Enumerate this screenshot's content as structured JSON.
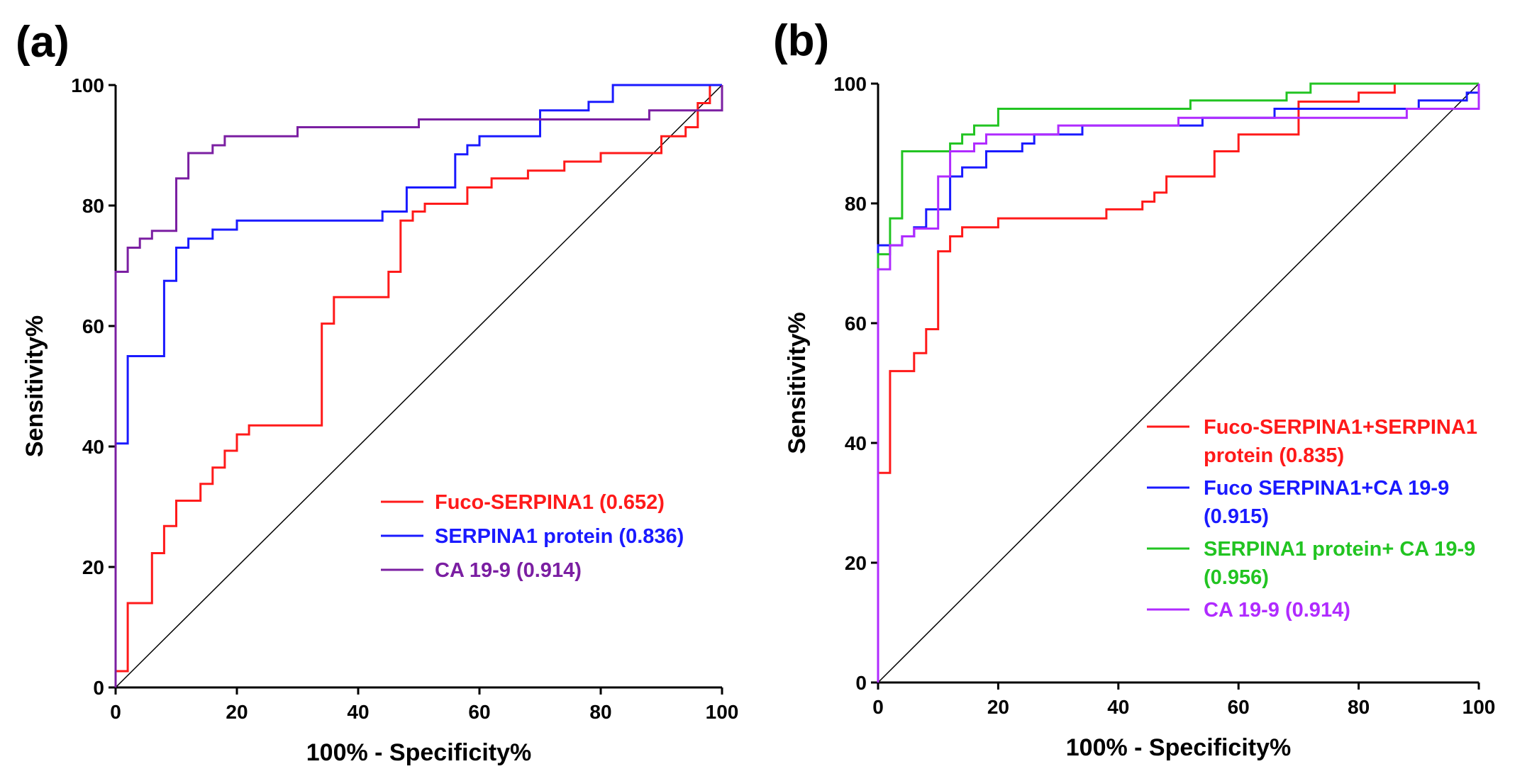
{
  "chart_data": [
    {
      "type": "line",
      "panel_label": "(a)",
      "xlabel": "100% - Specificity%",
      "ylabel": "Sensitivity%",
      "xlim": [
        0,
        100
      ],
      "ylim": [
        0,
        100
      ],
      "xticks": [
        "0",
        "20",
        "40",
        "60",
        "80",
        "100"
      ],
      "yticks": [
        "0",
        "20",
        "40",
        "60",
        "80",
        "100"
      ],
      "legend_position": "bottom-right",
      "series": [
        {
          "name": "Fuco-SERPINA1",
          "label_lines": [
            "Fuco-SERPINA1 (0.652)"
          ],
          "color": "#ff1a1a",
          "points": [
            [
              0,
              0
            ],
            [
              0,
              2.7
            ],
            [
              2,
              2.7
            ],
            [
              2,
              14
            ],
            [
              6,
              14
            ],
            [
              6,
              22.3
            ],
            [
              8,
              22.3
            ],
            [
              8,
              26.8
            ],
            [
              10,
              26.8
            ],
            [
              10,
              31
            ],
            [
              14,
              31
            ],
            [
              14,
              33.8
            ],
            [
              16,
              33.8
            ],
            [
              16,
              36.5
            ],
            [
              18,
              36.5
            ],
            [
              18,
              39.3
            ],
            [
              20,
              39.3
            ],
            [
              20,
              42
            ],
            [
              22,
              42
            ],
            [
              22,
              43.5
            ],
            [
              34,
              43.5
            ],
            [
              34,
              60.4
            ],
            [
              36,
              60.4
            ],
            [
              36,
              64.8
            ],
            [
              45,
              64.8
            ],
            [
              45,
              69
            ],
            [
              47,
              69
            ],
            [
              47,
              77.5
            ],
            [
              49,
              77.5
            ],
            [
              49,
              79
            ],
            [
              51,
              79
            ],
            [
              51,
              80.3
            ],
            [
              58,
              80.3
            ],
            [
              58,
              83
            ],
            [
              62,
              83
            ],
            [
              62,
              84.5
            ],
            [
              68,
              84.5
            ],
            [
              68,
              85.8
            ],
            [
              74,
              85.8
            ],
            [
              74,
              87.3
            ],
            [
              80,
              87.3
            ],
            [
              80,
              88.7
            ],
            [
              90,
              88.7
            ],
            [
              90,
              91.5
            ],
            [
              94,
              91.5
            ],
            [
              94,
              93
            ],
            [
              96,
              93
            ],
            [
              96,
              97
            ],
            [
              98,
              97
            ],
            [
              98,
              100
            ],
            [
              100,
              100
            ]
          ]
        },
        {
          "name": "SERPINA1 protein",
          "label_lines": [
            "SERPINA1 protein (0.836)"
          ],
          "color": "#1a1aff",
          "points": [
            [
              0,
              0
            ],
            [
              0,
              40.5
            ],
            [
              2,
              40.5
            ],
            [
              2,
              55
            ],
            [
              8,
              55
            ],
            [
              8,
              67.5
            ],
            [
              10,
              67.5
            ],
            [
              10,
              73
            ],
            [
              12,
              73
            ],
            [
              12,
              74.5
            ],
            [
              16,
              74.5
            ],
            [
              16,
              76
            ],
            [
              20,
              76
            ],
            [
              20,
              77.5
            ],
            [
              44,
              77.5
            ],
            [
              44,
              79
            ],
            [
              48,
              79
            ],
            [
              48,
              83
            ],
            [
              56,
              83
            ],
            [
              56,
              88.5
            ],
            [
              58,
              88.5
            ],
            [
              58,
              90
            ],
            [
              60,
              90
            ],
            [
              60,
              91.5
            ],
            [
              70,
              91.5
            ],
            [
              70,
              95.8
            ],
            [
              78,
              95.8
            ],
            [
              78,
              97.2
            ],
            [
              82,
              97.2
            ],
            [
              82,
              100
            ],
            [
              100,
              100
            ]
          ]
        },
        {
          "name": "CA 19-9",
          "label_lines": [
            "CA 19-9 (0.914)"
          ],
          "color": "#7b1fa2",
          "points": [
            [
              0,
              0
            ],
            [
              0,
              69
            ],
            [
              2,
              69
            ],
            [
              2,
              73
            ],
            [
              4,
              73
            ],
            [
              4,
              74.5
            ],
            [
              6,
              74.5
            ],
            [
              6,
              75.8
            ],
            [
              10,
              75.8
            ],
            [
              10,
              84.5
            ],
            [
              12,
              84.5
            ],
            [
              12,
              88.7
            ],
            [
              16,
              88.7
            ],
            [
              16,
              90
            ],
            [
              18,
              90
            ],
            [
              18,
              91.5
            ],
            [
              30,
              91.5
            ],
            [
              30,
              93
            ],
            [
              50,
              93
            ],
            [
              50,
              94.3
            ],
            [
              88,
              94.3
            ],
            [
              88,
              95.8
            ],
            [
              100,
              95.8
            ],
            [
              100,
              100
            ]
          ]
        }
      ]
    },
    {
      "type": "line",
      "panel_label": "(b)",
      "xlabel": "100% - Specificity%",
      "ylabel": "Sensitivity%",
      "xlim": [
        0,
        100
      ],
      "ylim": [
        0,
        100
      ],
      "xticks": [
        "0",
        "20",
        "40",
        "60",
        "80",
        "100"
      ],
      "yticks": [
        "0",
        "20",
        "40",
        "60",
        "80",
        "100"
      ],
      "legend_position": "bottom-right",
      "series": [
        {
          "name": "Fuco-SERPINA1+SERPINA1 protein",
          "label_lines": [
            "Fuco-SERPINA1+SERPINA1",
            "protein (0.835)"
          ],
          "color": "#ff1a1a",
          "points": [
            [
              0,
              0
            ],
            [
              0,
              35
            ],
            [
              2,
              35
            ],
            [
              2,
              52
            ],
            [
              6,
              52
            ],
            [
              6,
              55
            ],
            [
              8,
              55
            ],
            [
              8,
              59
            ],
            [
              10,
              59
            ],
            [
              10,
              72
            ],
            [
              12,
              72
            ],
            [
              12,
              74.5
            ],
            [
              14,
              74.5
            ],
            [
              14,
              76
            ],
            [
              20,
              76
            ],
            [
              20,
              77.5
            ],
            [
              38,
              77.5
            ],
            [
              38,
              79
            ],
            [
              44,
              79
            ],
            [
              44,
              80.3
            ],
            [
              46,
              80.3
            ],
            [
              46,
              81.8
            ],
            [
              48,
              81.8
            ],
            [
              48,
              84.5
            ],
            [
              56,
              84.5
            ],
            [
              56,
              88.7
            ],
            [
              60,
              88.7
            ],
            [
              60,
              91.5
            ],
            [
              70,
              91.5
            ],
            [
              70,
              97
            ],
            [
              80,
              97
            ],
            [
              80,
              98.5
            ],
            [
              86,
              98.5
            ],
            [
              86,
              100
            ],
            [
              100,
              100
            ]
          ]
        },
        {
          "name": "Fuco SERPINA1+CA 19-9",
          "label_lines": [
            "Fuco SERPINA1+CA 19-9",
            "(0.915)"
          ],
          "color": "#1a1aff",
          "points": [
            [
              0,
              0
            ],
            [
              0,
              73
            ],
            [
              4,
              73
            ],
            [
              4,
              74.5
            ],
            [
              6,
              74.5
            ],
            [
              6,
              76
            ],
            [
              8,
              76
            ],
            [
              8,
              79
            ],
            [
              12,
              79
            ],
            [
              12,
              84.5
            ],
            [
              14,
              84.5
            ],
            [
              14,
              86
            ],
            [
              18,
              86
            ],
            [
              18,
              88.7
            ],
            [
              24,
              88.7
            ],
            [
              24,
              90
            ],
            [
              26,
              90
            ],
            [
              26,
              91.5
            ],
            [
              34,
              91.5
            ],
            [
              34,
              93
            ],
            [
              54,
              93
            ],
            [
              54,
              94.3
            ],
            [
              66,
              94.3
            ],
            [
              66,
              95.8
            ],
            [
              90,
              95.8
            ],
            [
              90,
              97.2
            ],
            [
              98,
              97.2
            ],
            [
              98,
              98.5
            ],
            [
              100,
              98.5
            ],
            [
              100,
              100
            ]
          ]
        },
        {
          "name": "SERPINA1 protein+ CA 19-9",
          "label_lines": [
            "SERPINA1 protein+ CA 19-9",
            "(0.956)"
          ],
          "color": "#22c422",
          "points": [
            [
              0,
              0
            ],
            [
              0,
              71.5
            ],
            [
              2,
              71.5
            ],
            [
              2,
              77.5
            ],
            [
              4,
              77.5
            ],
            [
              4,
              88.7
            ],
            [
              12,
              88.7
            ],
            [
              12,
              90
            ],
            [
              14,
              90
            ],
            [
              14,
              91.5
            ],
            [
              16,
              91.5
            ],
            [
              16,
              93
            ],
            [
              20,
              93
            ],
            [
              20,
              95.8
            ],
            [
              52,
              95.8
            ],
            [
              52,
              97.2
            ],
            [
              68,
              97.2
            ],
            [
              68,
              98.5
            ],
            [
              72,
              98.5
            ],
            [
              72,
              100
            ],
            [
              100,
              100
            ]
          ]
        },
        {
          "name": "CA 19-9",
          "label_lines": [
            "CA 19-9 (0.914)"
          ],
          "color": "#b02bff",
          "points": [
            [
              0,
              0
            ],
            [
              0,
              69
            ],
            [
              2,
              69
            ],
            [
              2,
              73
            ],
            [
              4,
              73
            ],
            [
              4,
              74.5
            ],
            [
              6,
              74.5
            ],
            [
              6,
              75.8
            ],
            [
              10,
              75.8
            ],
            [
              10,
              84.5
            ],
            [
              12,
              84.5
            ],
            [
              12,
              88.7
            ],
            [
              16,
              88.7
            ],
            [
              16,
              90
            ],
            [
              18,
              90
            ],
            [
              18,
              91.5
            ],
            [
              30,
              91.5
            ],
            [
              30,
              93
            ],
            [
              50,
              93
            ],
            [
              50,
              94.3
            ],
            [
              88,
              94.3
            ],
            [
              88,
              95.8
            ],
            [
              100,
              95.8
            ],
            [
              100,
              100
            ]
          ]
        }
      ]
    }
  ]
}
